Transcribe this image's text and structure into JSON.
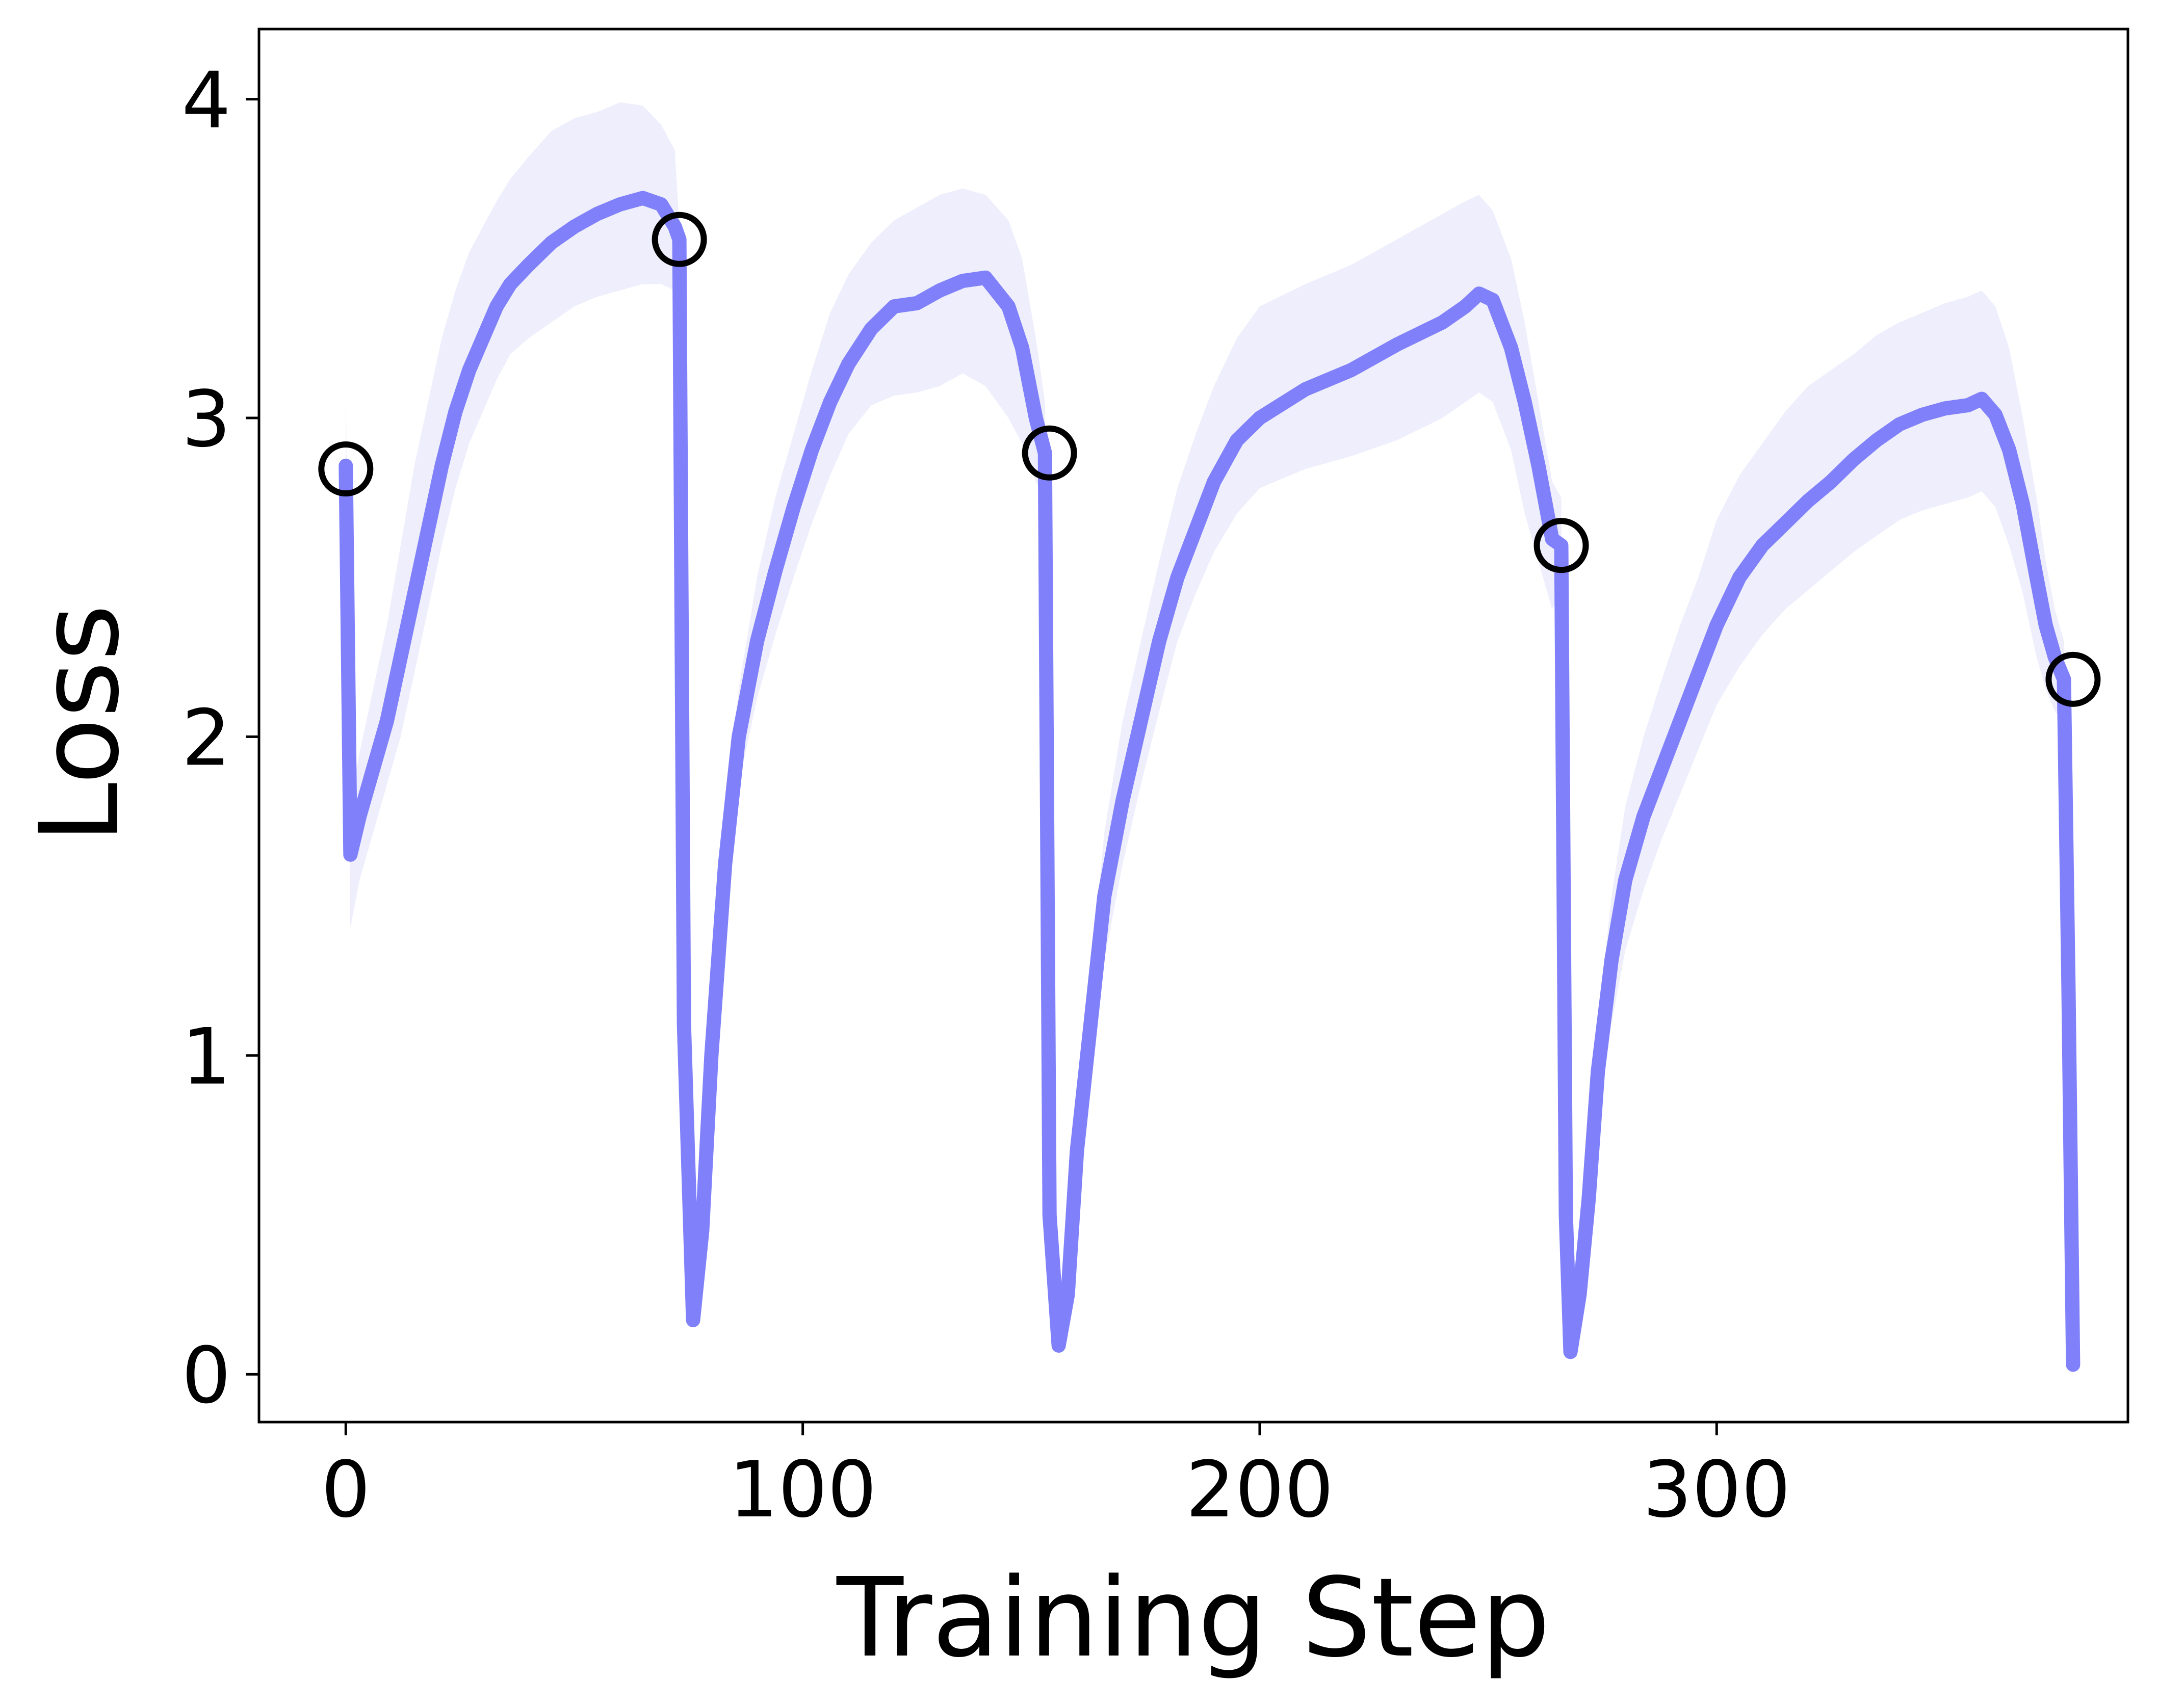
{
  "chart_data": {
    "type": "line",
    "title": "",
    "xlabel": "Training Step",
    "ylabel": "Loss",
    "xlim": [
      -19,
      390
    ],
    "ylim": [
      -0.15,
      4.22
    ],
    "xticks": [
      0,
      100,
      200,
      300
    ],
    "yticks": [
      0,
      1,
      2,
      3,
      4
    ],
    "grid": false,
    "legend": "none",
    "colors": {
      "line": "#8080fa",
      "band": "#eeeefc",
      "marker_edge": "#000000"
    },
    "series": [
      {
        "x": [
          0,
          1,
          3,
          6,
          9,
          12,
          15,
          18,
          21,
          24,
          27,
          30,
          33,
          36,
          40,
          45,
          50,
          55,
          60,
          65,
          69,
          72,
          73,
          74,
          76,
          78,
          80,
          83,
          86,
          90,
          94,
          98,
          102,
          106,
          110,
          115,
          120,
          125,
          130,
          135,
          140,
          145,
          148,
          151,
          153,
          154,
          156,
          158,
          160,
          163,
          166,
          170,
          174,
          178,
          182,
          186,
          190,
          195,
          200,
          210,
          220,
          230,
          240,
          245,
          248,
          251,
          255,
          258,
          261,
          264,
          266,
          267,
          268,
          270,
          272,
          274,
          277,
          280,
          284,
          288,
          292,
          296,
          300,
          305,
          310,
          315,
          320,
          325,
          330,
          335,
          340,
          345,
          350,
          355,
          358,
          361,
          364,
          367,
          370,
          372,
          374,
          376,
          377,
          378
        ],
        "values": [
          2.85,
          1.63,
          1.75,
          1.9,
          2.05,
          2.25,
          2.45,
          2.65,
          2.85,
          3.02,
          3.15,
          3.25,
          3.35,
          3.42,
          3.48,
          3.55,
          3.6,
          3.64,
          3.67,
          3.69,
          3.67,
          3.6,
          3.56,
          1.1,
          0.17,
          0.45,
          1.0,
          1.6,
          2.0,
          2.3,
          2.52,
          2.72,
          2.9,
          3.05,
          3.17,
          3.28,
          3.35,
          3.36,
          3.4,
          3.43,
          3.44,
          3.35,
          3.22,
          3.0,
          2.89,
          0.5,
          0.09,
          0.25,
          0.7,
          1.1,
          1.5,
          1.8,
          2.05,
          2.3,
          2.5,
          2.65,
          2.8,
          2.93,
          3.0,
          3.09,
          3.15,
          3.23,
          3.3,
          3.35,
          3.39,
          3.37,
          3.22,
          3.05,
          2.85,
          2.62,
          2.6,
          0.5,
          0.07,
          0.25,
          0.55,
          0.95,
          1.3,
          1.55,
          1.75,
          1.9,
          2.05,
          2.2,
          2.35,
          2.5,
          2.6,
          2.67,
          2.74,
          2.8,
          2.87,
          2.93,
          2.98,
          3.01,
          3.03,
          3.04,
          3.06,
          3.01,
          2.9,
          2.73,
          2.5,
          2.35,
          2.25,
          2.18,
          1.2,
          0.03
        ],
        "upper": [
          3.1,
          1.8,
          1.95,
          2.15,
          2.35,
          2.6,
          2.85,
          3.05,
          3.25,
          3.4,
          3.52,
          3.6,
          3.68,
          3.75,
          3.82,
          3.9,
          3.94,
          3.96,
          3.99,
          3.98,
          3.92,
          3.84,
          3.6,
          1.2,
          0.2,
          0.5,
          1.1,
          1.75,
          2.15,
          2.5,
          2.75,
          2.95,
          3.15,
          3.33,
          3.45,
          3.55,
          3.62,
          3.66,
          3.7,
          3.72,
          3.7,
          3.62,
          3.5,
          3.25,
          3.05,
          0.6,
          0.1,
          0.3,
          0.8,
          1.25,
          1.7,
          2.05,
          2.3,
          2.55,
          2.78,
          2.95,
          3.1,
          3.25,
          3.35,
          3.42,
          3.48,
          3.56,
          3.64,
          3.68,
          3.7,
          3.65,
          3.5,
          3.3,
          3.05,
          2.8,
          2.75,
          0.6,
          0.08,
          0.3,
          0.65,
          1.1,
          1.5,
          1.78,
          2.0,
          2.18,
          2.35,
          2.5,
          2.68,
          2.82,
          2.92,
          3.02,
          3.1,
          3.15,
          3.2,
          3.26,
          3.3,
          3.33,
          3.36,
          3.38,
          3.4,
          3.35,
          3.22,
          3.0,
          2.75,
          2.55,
          2.4,
          2.3,
          1.3,
          0.04
        ],
        "lower": [
          2.6,
          1.4,
          1.55,
          1.7,
          1.85,
          2.0,
          2.2,
          2.4,
          2.6,
          2.78,
          2.92,
          3.02,
          3.12,
          3.2,
          3.25,
          3.3,
          3.35,
          3.38,
          3.4,
          3.42,
          3.42,
          3.4,
          3.5,
          1.0,
          0.15,
          0.4,
          0.9,
          1.45,
          1.85,
          2.12,
          2.32,
          2.5,
          2.67,
          2.82,
          2.95,
          3.04,
          3.07,
          3.08,
          3.1,
          3.14,
          3.1,
          3.0,
          2.92,
          2.8,
          2.75,
          0.4,
          0.08,
          0.2,
          0.6,
          0.95,
          1.3,
          1.6,
          1.85,
          2.08,
          2.3,
          2.45,
          2.58,
          2.7,
          2.78,
          2.84,
          2.88,
          2.93,
          3.0,
          3.05,
          3.08,
          3.05,
          2.9,
          2.7,
          2.55,
          2.4,
          2.45,
          0.4,
          0.06,
          0.2,
          0.45,
          0.8,
          1.1,
          1.33,
          1.52,
          1.68,
          1.82,
          1.96,
          2.1,
          2.22,
          2.32,
          2.4,
          2.46,
          2.52,
          2.58,
          2.63,
          2.68,
          2.71,
          2.73,
          2.75,
          2.77,
          2.72,
          2.6,
          2.45,
          2.25,
          2.15,
          2.08,
          2.05,
          1.1,
          0.02
        ]
      }
    ],
    "markers": {
      "style": "hollow-circle",
      "points": [
        {
          "x": 0,
          "y": 2.84
        },
        {
          "x": 73,
          "y": 3.56
        },
        {
          "x": 154,
          "y": 2.89
        },
        {
          "x": 266,
          "y": 2.6
        },
        {
          "x": 378,
          "y": 2.18
        }
      ]
    }
  }
}
